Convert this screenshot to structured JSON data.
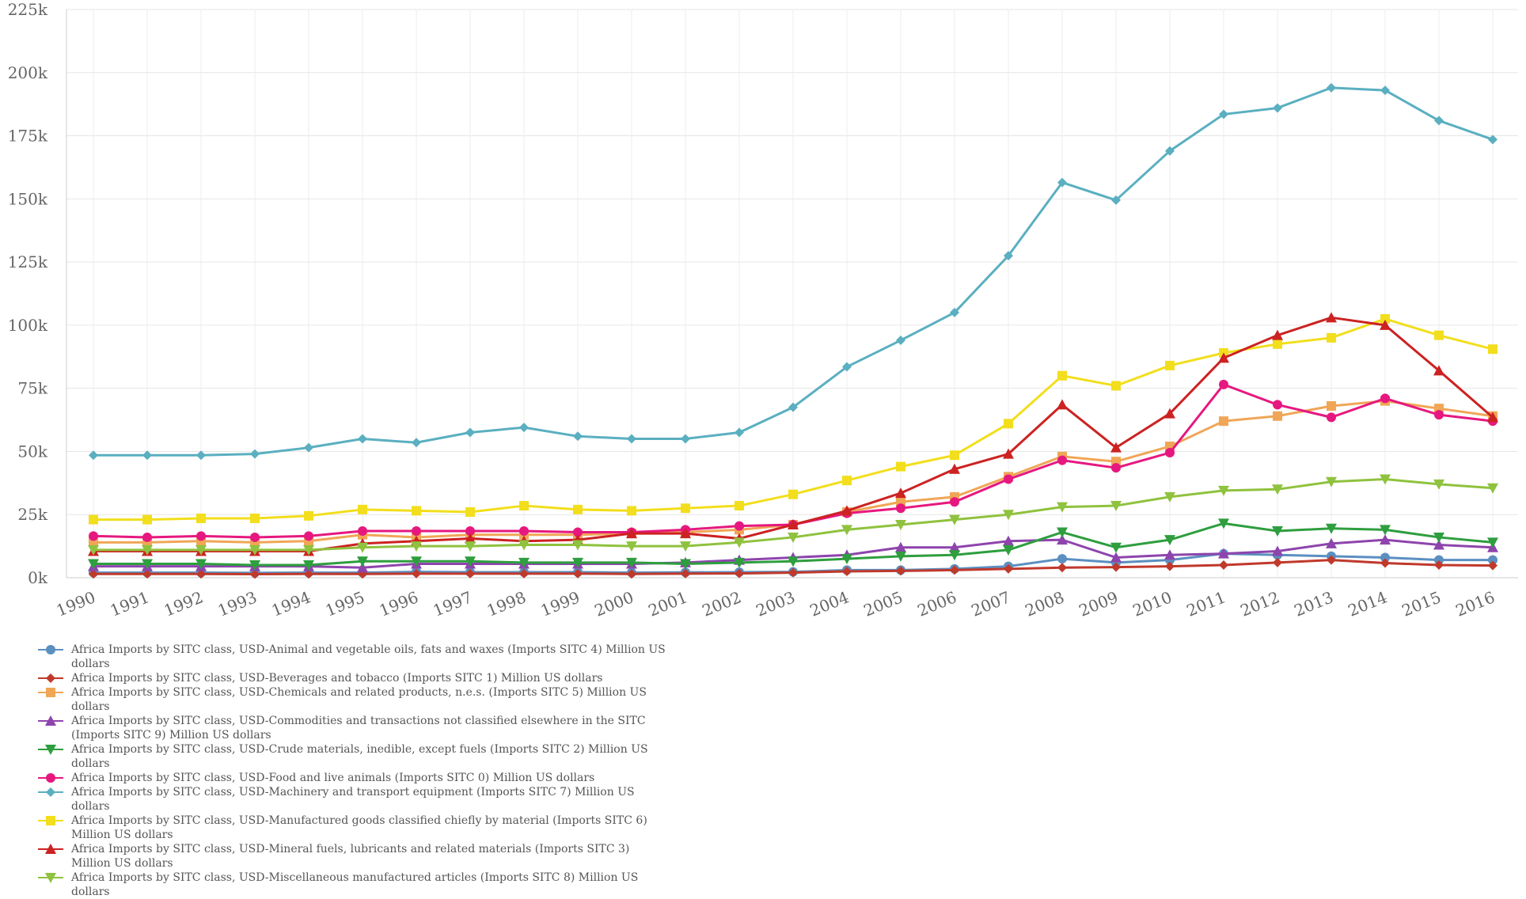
{
  "chart_data": {
    "type": "line",
    "title": "",
    "xlabel": "",
    "ylabel": "",
    "ylim": [
      0,
      225000
    ],
    "y_ticks": [
      "0k",
      "25k",
      "50k",
      "75k",
      "100k",
      "125k",
      "150k",
      "175k",
      "200k",
      "225k"
    ],
    "y_tick_values": [
      0,
      25000,
      50000,
      75000,
      100000,
      125000,
      150000,
      175000,
      200000,
      225000
    ],
    "grid": true,
    "legend_position": "bottom-left",
    "x": [
      "1990",
      "1991",
      "1992",
      "1993",
      "1994",
      "1995",
      "1996",
      "1997",
      "1998",
      "1999",
      "2000",
      "2001",
      "2002",
      "2003",
      "2004",
      "2005",
      "2006",
      "2007",
      "2008",
      "2009",
      "2010",
      "2011",
      "2012",
      "2013",
      "2014",
      "2015",
      "2016"
    ],
    "series": [
      {
        "name": "Africa Imports by SITC class, USD-Animal and vegetable oils, fats and waxes (Imports SITC 4) Million US dollars",
        "color": "#5b8fc0",
        "marker": "circle",
        "values": [
          2000,
          2000,
          2000,
          1900,
          2000,
          2000,
          2300,
          2200,
          2200,
          2200,
          2000,
          2100,
          2200,
          2300,
          3000,
          3000,
          3500,
          4500,
          7500,
          6000,
          7000,
          9500,
          9000,
          8500,
          8000,
          7000,
          7000
        ]
      },
      {
        "name": "Africa Imports by SITC class, USD-Beverages and tobacco (Imports SITC 1) Million US dollars",
        "color": "#c0392b",
        "marker": "diamond",
        "values": [
          1500,
          1500,
          1500,
          1400,
          1500,
          1500,
          1600,
          1600,
          1600,
          1600,
          1500,
          1600,
          1700,
          2000,
          2500,
          2700,
          3000,
          3500,
          4000,
          4200,
          4500,
          5000,
          6000,
          7000,
          5800,
          5000,
          4800
        ]
      },
      {
        "name": "Africa Imports by SITC class, USD-Chemicals and related products, n.e.s. (Imports SITC 5) Million US dollars",
        "color": "#f0a656",
        "marker": "square",
        "values": [
          14000,
          14000,
          14500,
          14000,
          14500,
          17000,
          16000,
          17000,
          17000,
          17000,
          17500,
          18000,
          19000,
          21000,
          26000,
          30000,
          32000,
          40000,
          48000,
          46000,
          52000,
          62000,
          64000,
          68000,
          70000,
          67000,
          64000
        ]
      },
      {
        "name": "Africa Imports by SITC class, USD-Commodities and transactions not classified elsewhere in the SITC (Imports SITC 9) Million US dollars",
        "color": "#8e44ad",
        "marker": "triangle-up",
        "values": [
          4500,
          4500,
          4500,
          4500,
          4500,
          4000,
          5500,
          5500,
          5500,
          5500,
          5500,
          6000,
          7000,
          8000,
          9000,
          12000,
          12000,
          14500,
          15000,
          8000,
          9000,
          9500,
          10500,
          13500,
          15000,
          13000,
          12000
        ]
      },
      {
        "name": "Africa Imports by SITC class, USD-Crude materials, inedible, except fuels (Imports SITC 2) Million US dollars",
        "color": "#2e9e3e",
        "marker": "triangle-down",
        "values": [
          5500,
          5500,
          5500,
          5000,
          5000,
          6500,
          6500,
          6500,
          6000,
          6000,
          6000,
          5500,
          6000,
          6500,
          7500,
          8500,
          9000,
          11000,
          18000,
          12000,
          15000,
          21500,
          18500,
          19500,
          19000,
          16000,
          14000
        ]
      },
      {
        "name": "Africa Imports by SITC class, USD-Food and live animals (Imports SITC 0) Million US dollars",
        "color": "#e6187f",
        "marker": "circle",
        "values": [
          16500,
          16000,
          16500,
          16000,
          16500,
          18500,
          18500,
          18500,
          18500,
          18000,
          18000,
          19000,
          20500,
          21000,
          25500,
          27500,
          30000,
          39000,
          46500,
          43500,
          49500,
          76500,
          68500,
          63500,
          71000,
          64500,
          62000
        ]
      },
      {
        "name": "Africa Imports by SITC class, USD-Machinery and transport equipment (Imports SITC 7) Million US dollars",
        "color": "#5aafc0",
        "marker": "diamond",
        "values": [
          48500,
          48500,
          48500,
          49000,
          51500,
          55000,
          53500,
          57500,
          59500,
          56000,
          55000,
          55000,
          57500,
          67500,
          83500,
          94000,
          105000,
          127500,
          156500,
          149500,
          169000,
          183500,
          186000,
          194000,
          193000,
          181000,
          173500
        ]
      },
      {
        "name": "Africa Imports by SITC class, USD-Manufactured goods classified chiefly by material (Imports SITC 6) Million US dollars",
        "color": "#f2de1c",
        "marker": "square",
        "values": [
          23000,
          23000,
          23500,
          23500,
          24500,
          27000,
          26500,
          26000,
          28500,
          27000,
          26500,
          27500,
          28500,
          33000,
          38500,
          44000,
          48500,
          61000,
          80000,
          76000,
          84000,
          89000,
          92500,
          95000,
          102500,
          96000,
          90500
        ]
      },
      {
        "name": "Africa Imports by SITC class, USD-Mineral fuels, lubricants and related materials (Imports SITC 3) Million US dollars",
        "color": "#cc2222",
        "marker": "triangle-up",
        "values": [
          10500,
          10500,
          10500,
          10500,
          10500,
          13500,
          14500,
          15500,
          14500,
          15000,
          17500,
          17500,
          15500,
          21000,
          26500,
          33500,
          43000,
          49000,
          68500,
          51500,
          65000,
          87000,
          96000,
          103000,
          100000,
          82000,
          63500
        ]
      },
      {
        "name": "Africa Imports by SITC class, USD-Miscellaneous manufactured articles (Imports SITC 8) Million US dollars",
        "color": "#8fc23e",
        "marker": "triangle-down",
        "values": [
          11000,
          11000,
          11000,
          11000,
          11000,
          12000,
          12500,
          12500,
          13000,
          13000,
          12500,
          12500,
          14000,
          16000,
          19000,
          21000,
          23000,
          25000,
          28000,
          28500,
          32000,
          34500,
          35000,
          38000,
          39000,
          37000,
          35500
        ]
      }
    ]
  }
}
